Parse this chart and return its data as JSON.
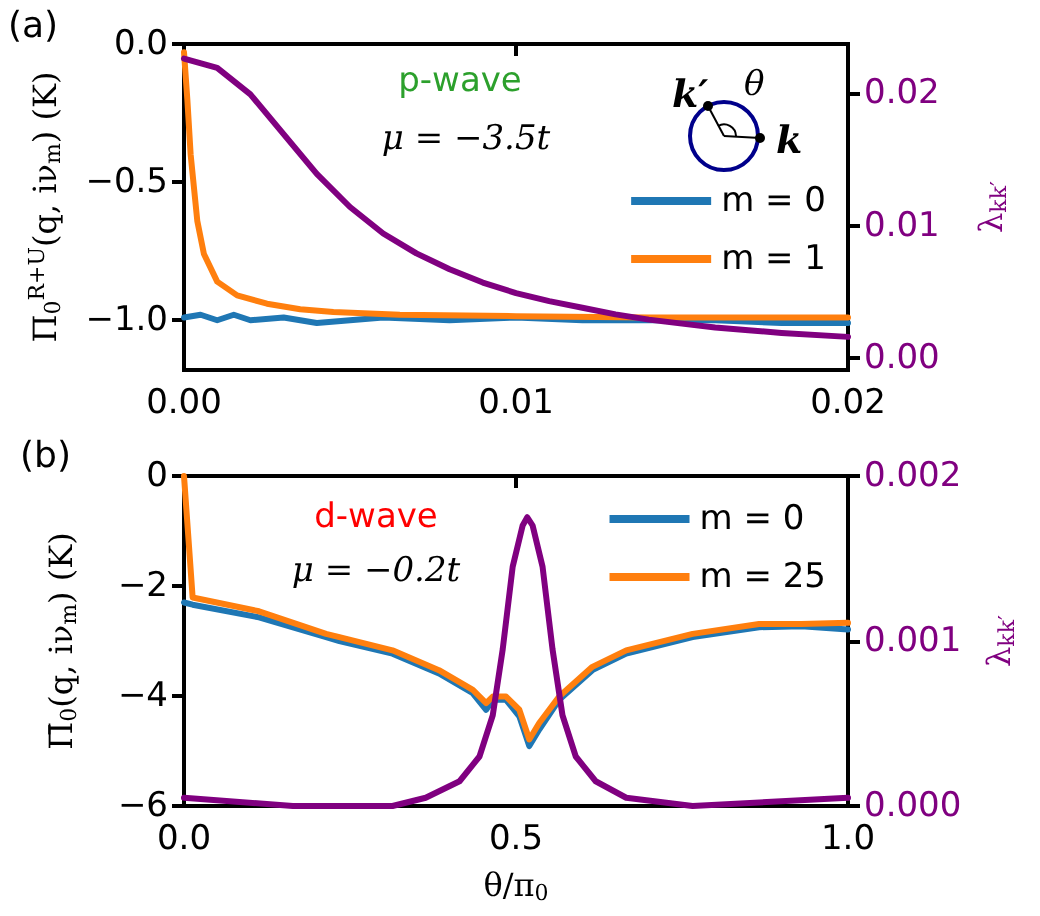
{
  "chart_data": [
    {
      "type": "line",
      "annotations": [
        "(a)",
        "p-wave",
        "μ = −3.5t",
        "k′",
        "θ",
        "k"
      ],
      "ylabel": "Π$_{0}$$^{R+U}$(q, iν$_{m}$) (K)",
      "y2label": "λ$_{kk′}$",
      "xlim": [
        0,
        0.02
      ],
      "xticks": [
        {
          "value": 0,
          "label": "0.00"
        },
        {
          "value": 0.01,
          "label": "0.01"
        },
        {
          "value": 0.02,
          "label": "0.02"
        }
      ],
      "ylim": [
        -1.18,
        0
      ],
      "yticks": [
        {
          "value": 0,
          "label": "0.0"
        },
        {
          "value": -0.5,
          "label": "−0.5"
        },
        {
          "value": -1,
          "label": "−1.0"
        }
      ],
      "y2lim": [
        -0.0009,
        0.0237
      ],
      "y2ticks": [
        {
          "value": 0,
          "label": "0.00"
        },
        {
          "value": 0.01,
          "label": "0.01"
        },
        {
          "value": 0.02,
          "label": "0.02"
        }
      ],
      "legend": "bottom right",
      "marker": "none",
      "series": [
        {
          "name": "m = 0",
          "color": "#1f77b4",
          "x": [
            0,
            0.0005,
            0.001,
            0.0015,
            0.002,
            0.003,
            0.004,
            0.005,
            0.006,
            0.008,
            0.01,
            0.012,
            0.014,
            0.016,
            0.018,
            0.02
          ],
          "values": [
            -0.99,
            -0.98,
            -1.0,
            -0.98,
            -1.0,
            -0.99,
            -1.01,
            -1.0,
            -0.99,
            -1.0,
            -0.99,
            -1.0,
            -1.0,
            -1.0,
            -1.01,
            -1.01
          ]
        },
        {
          "name": "m = 1",
          "color": "#ff7f0e",
          "x": [
            0,
            0.0001,
            0.0002,
            0.0004,
            0.0006,
            0.001,
            0.0016,
            0.0025,
            0.0035,
            0.0045,
            0.0065,
            0.01,
            0.014,
            0.02
          ],
          "values": [
            -0.03,
            -0.2,
            -0.4,
            -0.64,
            -0.76,
            -0.86,
            -0.91,
            -0.94,
            -0.96,
            -0.97,
            -0.98,
            -0.985,
            -0.99,
            -0.99
          ]
        },
        {
          "color": "#800080",
          "axis": "y2",
          "x": [
            0,
            0.001,
            0.002,
            0.003,
            0.004,
            0.005,
            0.006,
            0.007,
            0.008,
            0.009,
            0.01,
            0.011,
            0.012,
            0.013,
            0.014,
            0.015,
            0.016,
            0.017,
            0.018,
            0.02
          ],
          "values": [
            0.0226,
            0.0219,
            0.0199,
            0.0169,
            0.0139,
            0.0114,
            0.0094,
            0.0079,
            0.0067,
            0.0057,
            0.0049,
            0.0043,
            0.0038,
            0.0033,
            0.0029,
            0.0026,
            0.0023,
            0.0021,
            0.0019,
            0.0016
          ]
        }
      ]
    },
    {
      "type": "line",
      "annotations": [
        "(b)",
        "d-wave",
        "μ = −0.2t"
      ],
      "xlabel": "θ/π$_{0}$",
      "ylabel": "Π̄$_{0}$(q, iν$_{m}$) (K)",
      "y2label": "λ$_{kk′}$",
      "xlim": [
        0,
        1
      ],
      "xticks": [
        {
          "value": 0,
          "label": "0.0"
        },
        {
          "value": 0.5,
          "label": "0.5"
        },
        {
          "value": 1,
          "label": "1.0"
        }
      ],
      "ylim": [
        -6,
        0
      ],
      "yticks": [
        0,
        {
          "value": -2,
          "label": "−2"
        },
        {
          "value": -4,
          "label": "−4"
        },
        {
          "value": -6,
          "label": "−6"
        }
      ],
      "y2lim": [
        0,
        0.002
      ],
      "y2ticks": [
        {
          "value": 0,
          "label": "0.000"
        },
        {
          "value": 0.001,
          "label": "0.001"
        },
        {
          "value": 0.002,
          "label": "0.002"
        }
      ],
      "legend": "top right",
      "marker": "none",
      "series": [
        {
          "name": "m = 0",
          "color": "#1f77b4",
          "x": [
            0,
            0.013,
            0.113,
            0.214,
            0.234,
            0.314,
            0.384,
            0.435,
            0.455,
            0.465,
            0.485,
            0.505,
            0.52,
            0.535,
            0.565,
            0.615,
            0.666,
            0.766,
            0.866,
            0.93,
            1.0
          ],
          "values": [
            -2.3,
            -2.34,
            -2.57,
            -2.93,
            -3.0,
            -3.23,
            -3.59,
            -3.95,
            -4.25,
            -4.07,
            -4.07,
            -4.37,
            -4.91,
            -4.61,
            -4.07,
            -3.53,
            -3.23,
            -2.93,
            -2.75,
            -2.73,
            -2.79
          ]
        },
        {
          "name": "m = 25",
          "color": "#ff7f0e",
          "x": [
            0,
            0.013,
            0.113,
            0.214,
            0.234,
            0.314,
            0.384,
            0.435,
            0.455,
            0.465,
            0.485,
            0.505,
            0.52,
            0.535,
            0.565,
            0.615,
            0.666,
            0.766,
            0.866,
            0.93,
            1.0
          ],
          "values": [
            0,
            -2.21,
            -2.46,
            -2.87,
            -2.93,
            -3.17,
            -3.53,
            -3.89,
            -4.13,
            -4.01,
            -4.01,
            -4.25,
            -4.79,
            -4.49,
            -4.01,
            -3.47,
            -3.17,
            -2.87,
            -2.69,
            -2.69,
            -2.67
          ]
        },
        {
          "color": "#800080",
          "axis": "y2",
          "x": [
            0,
            0.164,
            0.314,
            0.364,
            0.415,
            0.445,
            0.465,
            0.48,
            0.495,
            0.51,
            0.517,
            0.525,
            0.54,
            0.555,
            0.57,
            0.59,
            0.62,
            0.666,
            0.766,
            1.0
          ],
          "values": [
            5e-05,
            0,
            0,
            5e-05,
            0.00015,
            0.0003,
            0.00055,
            0.00095,
            0.00145,
            0.0017,
            0.00175,
            0.0017,
            0.00145,
            0.00095,
            0.00055,
            0.0003,
            0.00015,
            5e-05,
            0,
            5e-05
          ]
        }
      ]
    }
  ]
}
